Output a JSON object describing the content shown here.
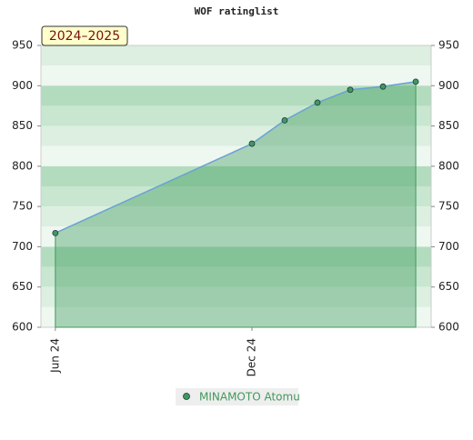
{
  "chart_data": {
    "type": "area",
    "title": "WOF ratinglist",
    "annotation": "2024–2025",
    "x": [
      0,
      6,
      7,
      8,
      9,
      10,
      11
    ],
    "xlim": [
      -0.44,
      11.47
    ],
    "xticks": [
      {
        "value": 0,
        "label": "Jun 24"
      },
      {
        "value": 6,
        "label": "Dec 24"
      }
    ],
    "series": [
      {
        "name": "MINAMOTO Atomu",
        "color": "#3f9a5c",
        "line_color": "#6aa2d6",
        "values": [
          717,
          828,
          857,
          879,
          895,
          899,
          905
        ]
      }
    ],
    "ylim": [
      600,
      950
    ],
    "yticks": [
      600,
      650,
      700,
      750,
      800,
      850,
      900,
      950
    ]
  }
}
